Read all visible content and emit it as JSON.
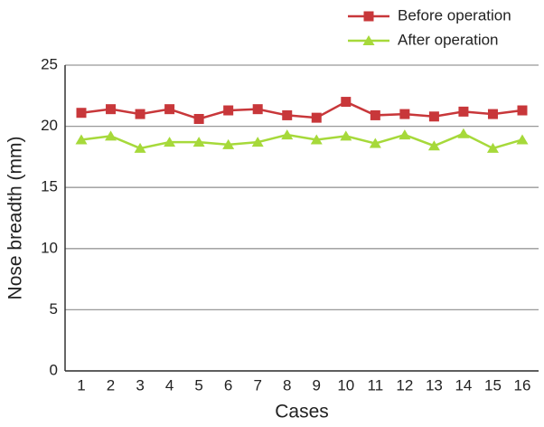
{
  "chart_data": {
    "type": "line",
    "x_label": "Cases",
    "y_label": "Nose breadth (mm)",
    "categories": [
      "1",
      "2",
      "3",
      "4",
      "5",
      "6",
      "7",
      "8",
      "9",
      "10",
      "11",
      "12",
      "13",
      "14",
      "15",
      "16"
    ],
    "series": [
      {
        "name": "Before operation",
        "color": "#c8373a",
        "marker": "square",
        "values": [
          21.1,
          21.4,
          21.0,
          21.4,
          20.6,
          21.3,
          21.4,
          20.9,
          20.7,
          22.0,
          20.9,
          21.0,
          20.8,
          21.2,
          21.0,
          21.3
        ]
      },
      {
        "name": "After operation",
        "color": "#a6d93a",
        "marker": "triangle",
        "values": [
          18.9,
          19.2,
          18.2,
          18.7,
          18.7,
          18.5,
          18.7,
          19.3,
          18.9,
          19.2,
          18.6,
          19.3,
          18.4,
          19.4,
          18.2,
          18.9
        ]
      }
    ],
    "ylim": [
      0,
      25
    ],
    "yticks": [
      0,
      5,
      10,
      15,
      20,
      25
    ],
    "grid": true,
    "legend": "top-right"
  }
}
